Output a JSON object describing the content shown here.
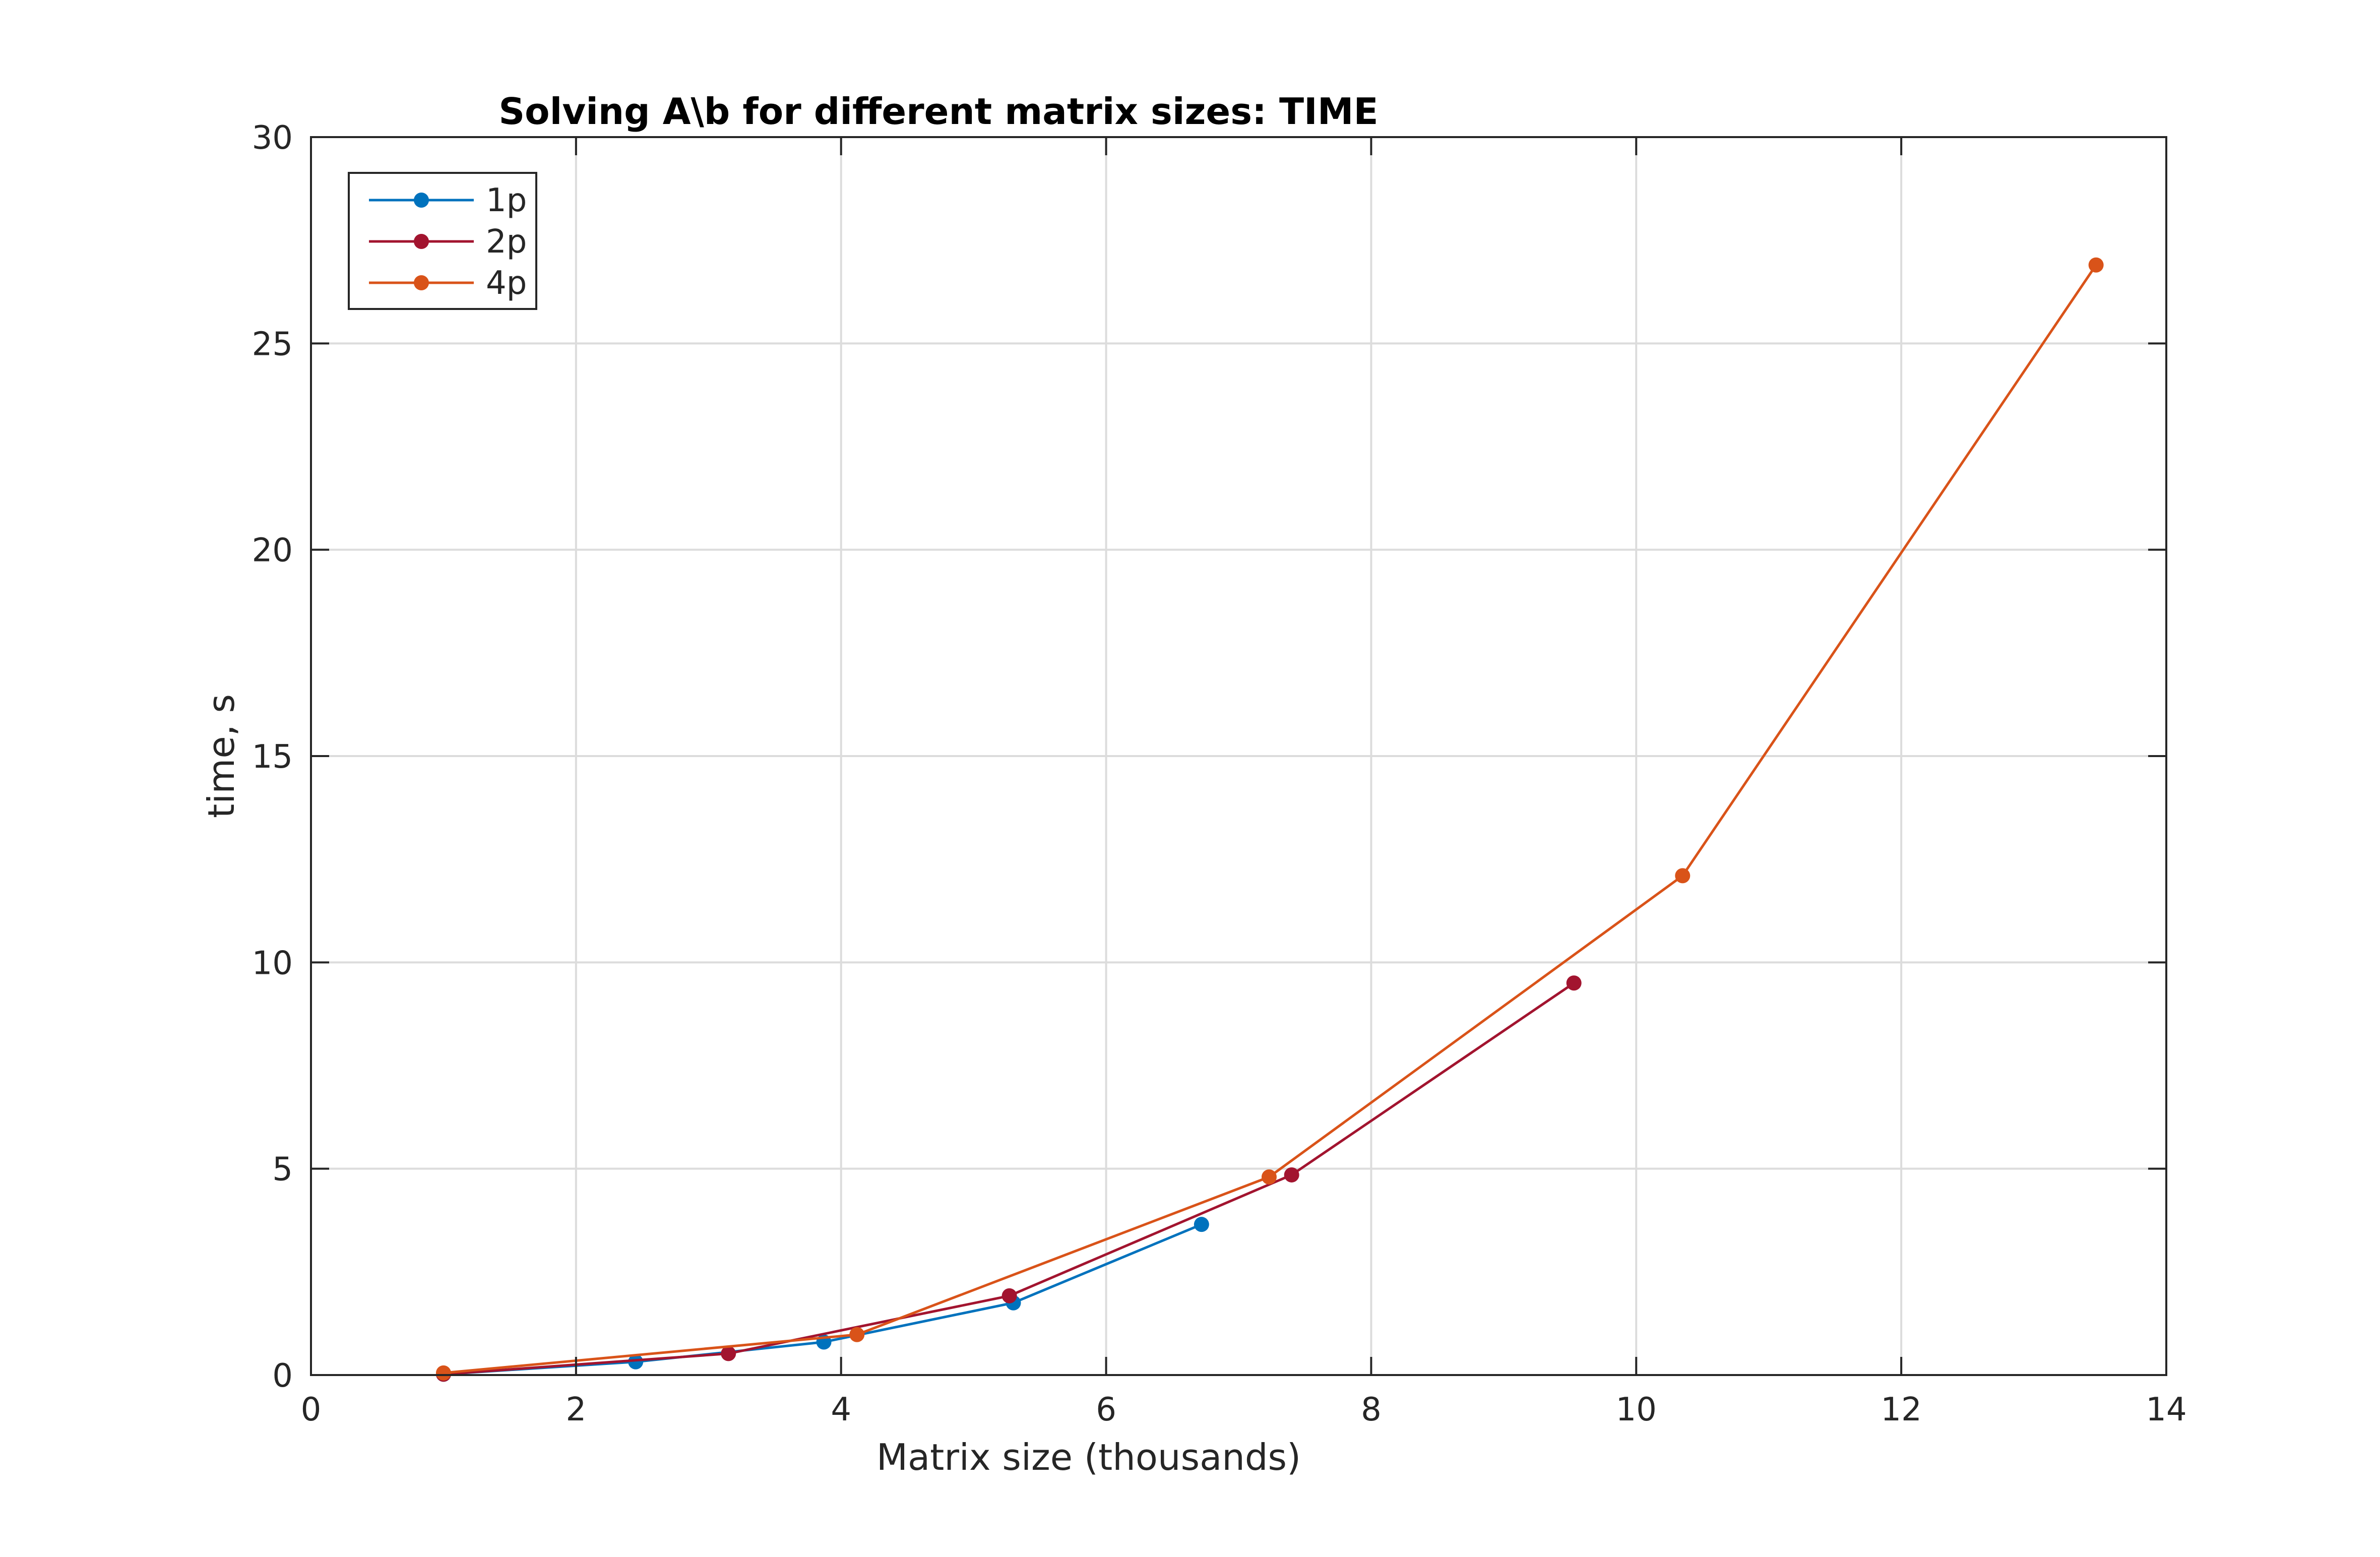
{
  "chart_data": {
    "type": "line",
    "title": "Solving A\\b for different matrix sizes: TIME",
    "xlabel": "Matrix size (thousands)",
    "ylabel": "time, s",
    "xlim": [
      0,
      14
    ],
    "ylim": [
      0,
      30
    ],
    "xticks": [
      0,
      2,
      4,
      6,
      8,
      10,
      12,
      14
    ],
    "yticks": [
      0,
      5,
      10,
      15,
      20,
      25,
      30
    ],
    "grid": true,
    "legend_position": "top-left",
    "series": [
      {
        "name": "1p",
        "color": "#0072bd",
        "x": [
          1.0,
          2.45,
          3.87,
          5.3,
          6.72
        ],
        "y": [
          0.02,
          0.32,
          0.8,
          1.75,
          3.65
        ]
      },
      {
        "name": "2p",
        "color": "#a2142f",
        "x": [
          1.0,
          3.15,
          5.27,
          7.4,
          9.53
        ],
        "y": [
          0.02,
          0.52,
          1.92,
          4.85,
          9.5
        ]
      },
      {
        "name": "4p",
        "color": "#d95319",
        "x": [
          1.0,
          4.12,
          7.23,
          10.35,
          13.47
        ],
        "y": [
          0.05,
          0.98,
          4.8,
          12.1,
          26.9
        ]
      }
    ]
  }
}
